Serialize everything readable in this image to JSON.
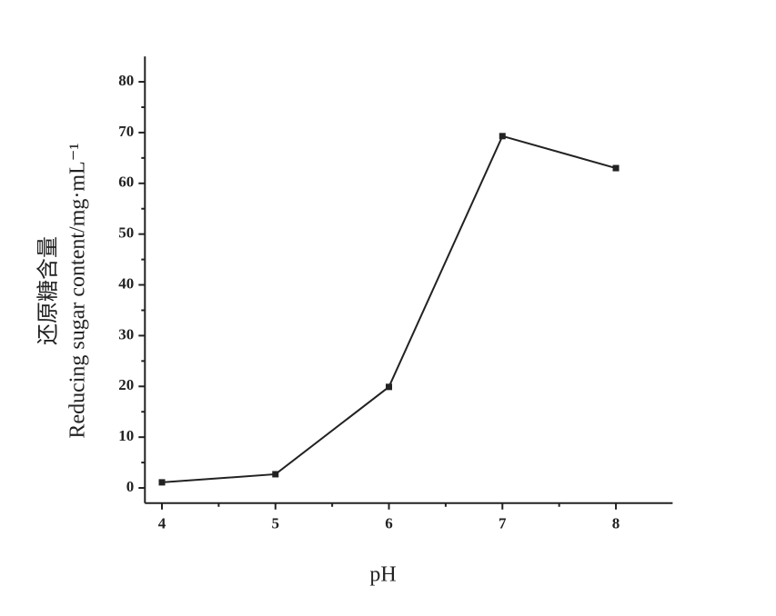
{
  "chart_data": {
    "type": "line",
    "x": [
      4,
      5,
      6,
      7,
      8
    ],
    "series": [
      {
        "color": "#222222",
        "values": [
          1.1,
          2.7,
          19.9,
          69.3,
          63.0
        ]
      }
    ],
    "xlabel": "pH",
    "ylabel": [
      "还原糖含量",
      "Reducing  sugar  content/mg·mL⁻¹"
    ],
    "xlim": [
      3.85,
      8.5
    ],
    "xticks": [
      4,
      5,
      6,
      7,
      8
    ],
    "xminorticks": [
      4.5,
      5.5,
      6.5,
      7.5
    ],
    "ylim": [
      -3,
      85
    ],
    "yticks": [
      0,
      10,
      20,
      30,
      40,
      50,
      60,
      70,
      80
    ],
    "yminorticks": [
      5,
      15,
      25,
      35,
      45,
      55,
      65,
      75
    ]
  }
}
